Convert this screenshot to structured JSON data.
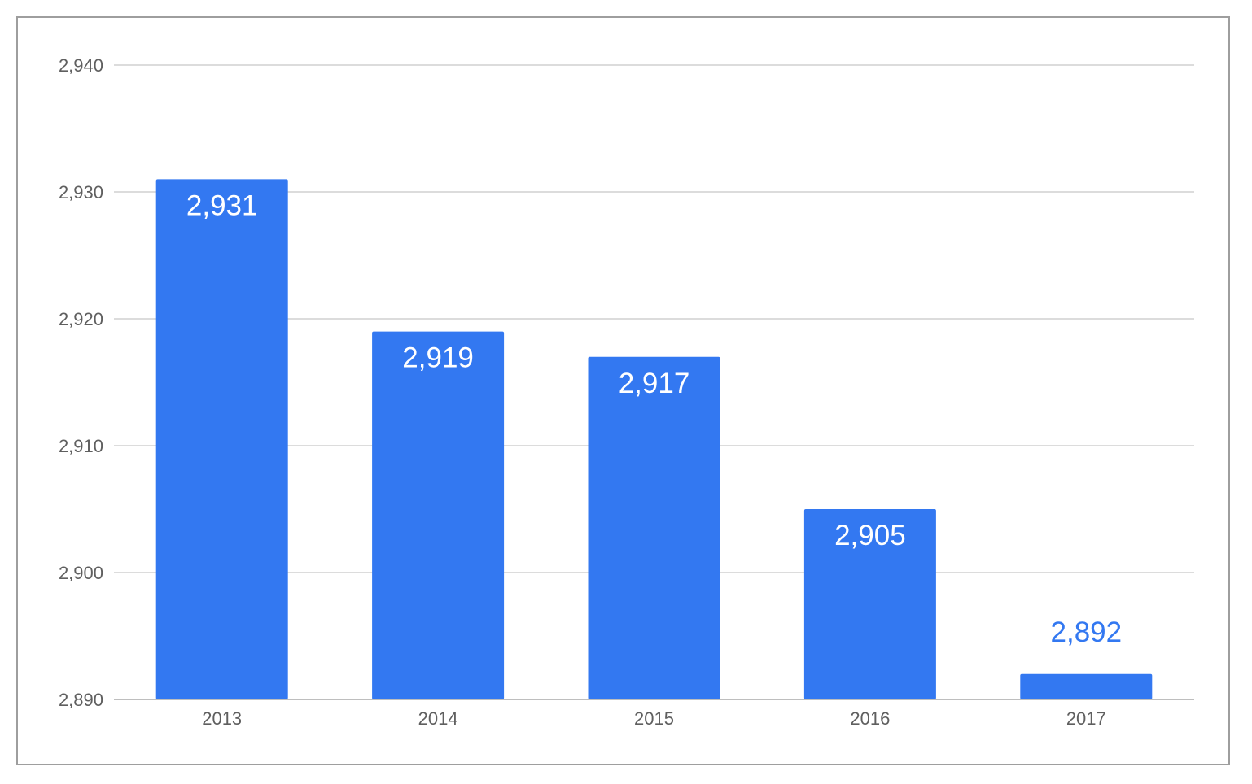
{
  "chart_data": {
    "type": "bar",
    "title": "",
    "xlabel": "",
    "ylabel": "",
    "categories": [
      "2013",
      "2014",
      "2015",
      "2016",
      "2017"
    ],
    "values": [
      2931,
      2919,
      2917,
      2905,
      2892
    ],
    "data_labels": [
      "2,931",
      "2,919",
      "2,917",
      "2,905",
      "2,892"
    ],
    "ylim": [
      2890,
      2940
    ],
    "yticks": [
      2890,
      2900,
      2910,
      2920,
      2930,
      2940
    ],
    "ytick_labels": [
      "2,890",
      "2,900",
      "2,910",
      "2,920",
      "2,930",
      "2,940"
    ],
    "grid": true,
    "legend": "none",
    "colors": {
      "bar": "#3378f1",
      "label_inside": "#ffffff",
      "label_outside": "#3378f1",
      "tick_text": "#5f5f5f",
      "grid": "#d0d0d0",
      "frame": "#9e9e9e"
    }
  }
}
